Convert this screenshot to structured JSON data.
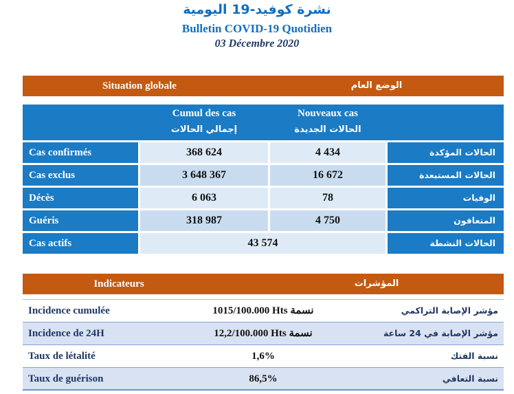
{
  "page": {
    "title_ar": "نشرة كوفيد-19 اليومية",
    "title_fr": "Bulletin COVID-19 Quotidien",
    "date": "03 Décembre 2020"
  },
  "situation": {
    "header_fr": "Situation globale",
    "header_ar": "الوضع العام",
    "columns": {
      "cumul_fr": "Cumul des cas",
      "cumul_ar": "إجمالي الحالات",
      "nouveaux_fr": "Nouveaux cas",
      "nouveaux_ar": "الحالات الجديدة"
    },
    "rows": [
      {
        "label_fr": "Cas confirmés",
        "cumul": "368 624",
        "nouveaux": "4 434",
        "label_ar": "الحالات المؤكدة"
      },
      {
        "label_fr": "Cas exclus",
        "cumul": "3 648 367",
        "nouveaux": "16 672",
        "label_ar": "الحالات المستبعدة"
      },
      {
        "label_fr": "Décès",
        "cumul": "6 063",
        "nouveaux": "78",
        "label_ar": "الوفيات"
      },
      {
        "label_fr": "Guéris",
        "cumul": "318 987",
        "nouveaux": "4 750",
        "label_ar": "المتعافون"
      },
      {
        "label_fr": "Cas actifs",
        "value": "43 574",
        "label_ar": "الحالات النشطة"
      }
    ]
  },
  "indicators": {
    "header_fr": "Indicateurs",
    "header_ar": "المؤشرات",
    "rows": [
      {
        "label_fr": "Incidence cumulée",
        "value": "1015/100.000 Hts نسمة",
        "label_ar": "مؤشر الإصابة التراكمي"
      },
      {
        "label_fr": "Incidence de 24H",
        "value": "12,2/100.000 Hts نسمة",
        "label_ar": "مؤشر الإصابة في 24 ساعة"
      },
      {
        "label_fr": "Taux de létalité",
        "value": "1,6%",
        "label_ar": "نسبة الفتك"
      },
      {
        "label_fr": "Taux de guérison",
        "value": "86,5%",
        "label_ar": "نسبة التعافي"
      }
    ]
  },
  "colors": {
    "blue": "#1B7BC4",
    "orange": "#C45911",
    "navy": "#1F3864",
    "titleblue": "#0F6FC0",
    "rowlight": "#DEEBF7",
    "rowmed": "#C9DCEF",
    "indalt": "#D9E2F3"
  }
}
